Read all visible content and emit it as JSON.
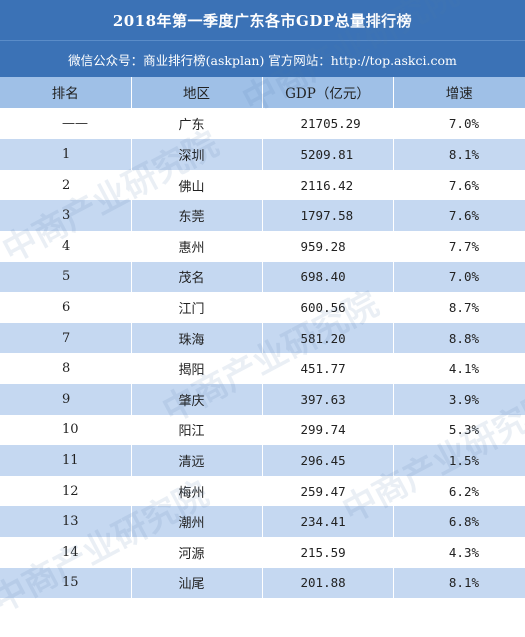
{
  "title": "2018年第一季度广东各市GDP总量排行榜",
  "subtitle": "微信公众号：商业排行榜(askplan) 官方网站：http://top.askci.com",
  "watermark": "中商产业研究院",
  "columns": [
    "排名",
    "地区",
    "GDP（亿元）",
    "增速"
  ],
  "rows": [
    {
      "rank": "——",
      "region": "广东",
      "gdp": "21705.29",
      "growth": "7.0%"
    },
    {
      "rank": "1",
      "region": "深圳",
      "gdp": "5209.81",
      "growth": "8.1%"
    },
    {
      "rank": "2",
      "region": "佛山",
      "gdp": "2116.42",
      "growth": "7.6%"
    },
    {
      "rank": "3",
      "region": "东莞",
      "gdp": "1797.58",
      "growth": "7.6%"
    },
    {
      "rank": "4",
      "region": "惠州",
      "gdp": "959.28",
      "growth": "7.7%"
    },
    {
      "rank": "5",
      "region": "茂名",
      "gdp": "698.40",
      "growth": "7.0%"
    },
    {
      "rank": "6",
      "region": "江门",
      "gdp": "600.56",
      "growth": "8.7%"
    },
    {
      "rank": "7",
      "region": "珠海",
      "gdp": "581.20",
      "growth": "8.8%"
    },
    {
      "rank": "8",
      "region": "揭阳",
      "gdp": "451.77",
      "growth": "4.1%"
    },
    {
      "rank": "9",
      "region": "肇庆",
      "gdp": "397.63",
      "growth": "3.9%"
    },
    {
      "rank": "10",
      "region": "阳江",
      "gdp": "299.74",
      "growth": "5.3%"
    },
    {
      "rank": "11",
      "region": "清远",
      "gdp": "296.45",
      "growth": "1.5%"
    },
    {
      "rank": "12",
      "region": "梅州",
      "gdp": "259.47",
      "growth": "6.2%"
    },
    {
      "rank": "13",
      "region": "潮州",
      "gdp": "234.41",
      "growth": "6.8%"
    },
    {
      "rank": "14",
      "region": "河源",
      "gdp": "215.59",
      "growth": "4.3%"
    },
    {
      "rank": "15",
      "region": "汕尾",
      "gdp": "201.88",
      "growth": "8.1%"
    }
  ],
  "colors": {
    "header_bg": "#3b72b6",
    "column_header_bg": "#9fc0e7",
    "stripe": "#c5d8f1"
  }
}
